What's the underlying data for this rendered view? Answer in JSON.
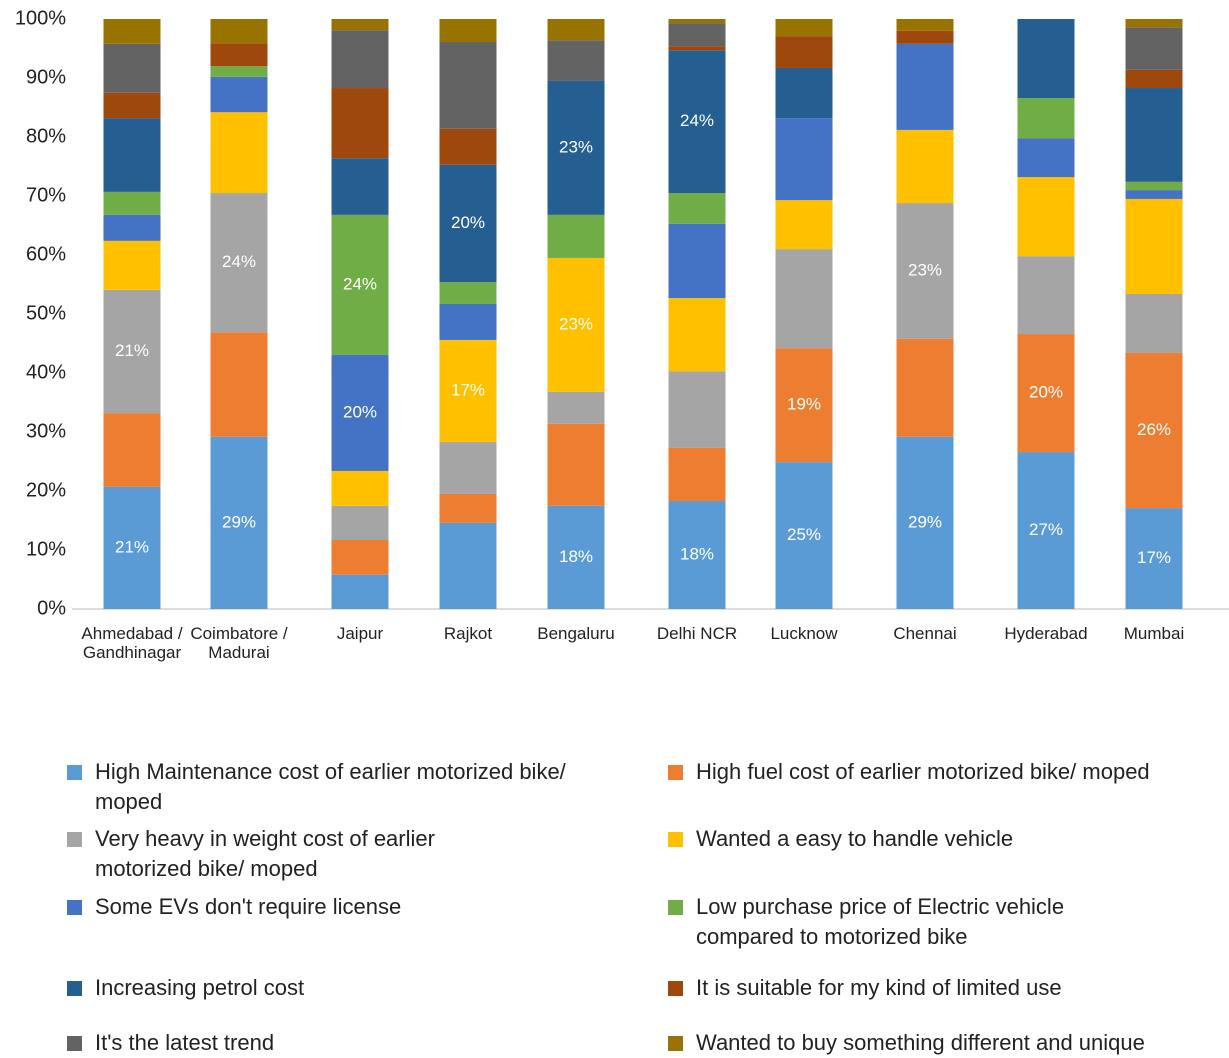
{
  "chart_data": {
    "type": "stacked_bar",
    "categories": [
      "Ahmedabad / Gandhinagar",
      "Coimbatore / Madurai",
      "Jaipur",
      "Rajkot",
      "Bengaluru",
      "Delhi NCR",
      "Lucknow",
      "Chennai",
      "Hyderabad",
      "Mumbai"
    ],
    "ylim": [
      0,
      100
    ],
    "yticks": [
      {
        "value": 0,
        "label": "0%"
      },
      {
        "value": 10,
        "label": "10%"
      },
      {
        "value": 20,
        "label": "20%"
      },
      {
        "value": 30,
        "label": "30%"
      },
      {
        "value": 40,
        "label": "40%"
      },
      {
        "value": 50,
        "label": "50%"
      },
      {
        "value": 60,
        "label": "60%"
      },
      {
        "value": 70,
        "label": "70%"
      },
      {
        "value": 80,
        "label": "80%"
      },
      {
        "value": 90,
        "label": "90%"
      },
      {
        "value": 100,
        "label": "100%"
      }
    ],
    "grid": false,
    "series": [
      {
        "name": "High Maintenance cost of earlier motorized bike/ moped",
        "color": "#5b9bd5",
        "values": [
          20.7,
          29.2,
          5.8,
          14.6,
          17.5,
          18.3,
          24.9,
          29.2,
          26.6,
          17.1
        ],
        "value_labels": [
          "21%",
          "29%",
          null,
          null,
          "18%",
          "18%",
          "25%",
          "29%",
          "27%",
          "17%"
        ]
      },
      {
        "name": "High fuel cost of earlier motorized bike/ moped",
        "color": "#ed7d31",
        "values": [
          12.5,
          17.7,
          5.9,
          4.9,
          13.9,
          9.0,
          19.3,
          16.6,
          20.0,
          26.3
        ],
        "value_labels": [
          null,
          null,
          null,
          null,
          null,
          null,
          "19%",
          null,
          "20%",
          "26%"
        ]
      },
      {
        "name": "Very heavy in weight cost of earlier motorized bike/ moped",
        "color": "#a5a5a5",
        "values": [
          20.9,
          23.6,
          5.8,
          8.8,
          5.4,
          13.0,
          16.8,
          23.0,
          13.2,
          10.0
        ],
        "value_labels": [
          "21%",
          "24%",
          null,
          null,
          null,
          null,
          null,
          "23%",
          null,
          null
        ]
      },
      {
        "name": "Wanted a easy to handle vehicle",
        "color": "#ffc000",
        "values": [
          8.3,
          13.7,
          5.9,
          17.3,
          22.7,
          12.4,
          8.3,
          12.4,
          13.4,
          16.1
        ],
        "value_labels": [
          null,
          null,
          null,
          "17%",
          "23%",
          null,
          null,
          null,
          null,
          null
        ]
      },
      {
        "name": "Some EVs don't require license",
        "color": "#4472c4",
        "values": [
          4.4,
          6.0,
          19.7,
          6.1,
          0,
          12.6,
          13.9,
          14.6,
          6.6,
          1.5
        ],
        "value_labels": [
          null,
          null,
          "20%",
          null,
          null,
          null,
          null,
          null,
          null,
          null
        ]
      },
      {
        "name": "Low purchase price of Electric vehicle compared to motorized bike",
        "color": "#70ad47",
        "values": [
          3.9,
          1.8,
          23.7,
          3.7,
          7.3,
          5.2,
          0,
          0,
          6.8,
          1.4
        ],
        "value_labels": [
          null,
          null,
          "24%",
          null,
          null,
          null,
          null,
          null,
          null,
          null
        ]
      },
      {
        "name": "Increasing petrol cost",
        "color": "#255e91",
        "values": [
          12.5,
          0,
          9.6,
          19.9,
          22.7,
          24.2,
          8.5,
          0,
          13.4,
          15.9
        ],
        "value_labels": [
          null,
          null,
          null,
          "20%",
          "23%",
          "24%",
          null,
          null,
          null,
          null
        ]
      },
      {
        "name": "It is suitable for my kind of limited use",
        "color": "#9e480e",
        "values": [
          4.3,
          3.9,
          11.9,
          6.1,
          0,
          0.7,
          5.4,
          2.2,
          0,
          3.1
        ]
      },
      {
        "name": "It's the latest trend",
        "color": "#636363",
        "values": [
          8.3,
          0,
          9.8,
          14.7,
          6.9,
          3.9,
          0,
          0,
          0,
          7.2
        ]
      },
      {
        "name": "Wanted to buy something different and unique",
        "color": "#997300",
        "values": [
          4.2,
          4.1,
          1.9,
          3.9,
          3.6,
          0.7,
          2.9,
          2.0,
          0,
          1.4
        ]
      }
    ]
  }
}
